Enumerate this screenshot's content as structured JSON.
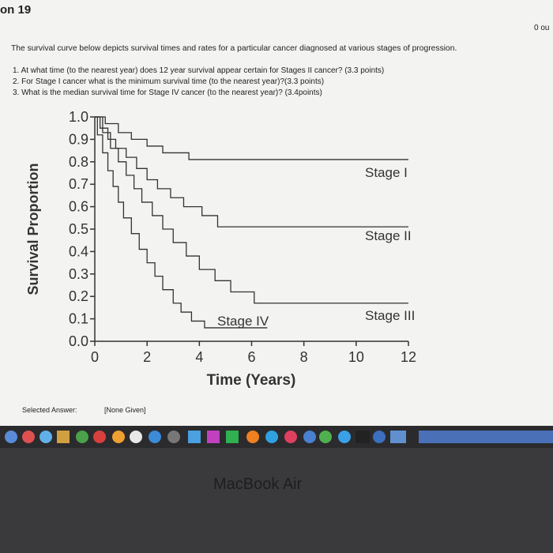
{
  "header": {
    "title": "on 19",
    "points": "0 ou"
  },
  "question": {
    "intro": "The survival curve below depicts survival times and rates for a particular cancer diagnosed at various stages of progression.",
    "items": [
      "1. At what time (to the nearest year) does 12 year survival appear certain for Stages II cancer? (3.3 points)",
      "2. For Stage I cancer what is the minimum survival time (to the nearest year)?(3.3 points)",
      "3. What is the median survival time for Stage IV cancer (to the nearest year)? (3.4points)"
    ]
  },
  "chart_data": {
    "type": "line",
    "step": true,
    "x_label": "Time (Years)",
    "y_label": "Survival Proportion",
    "xlim": [
      0,
      12
    ],
    "xticks": [
      0,
      2,
      4,
      6,
      8,
      10,
      12
    ],
    "ylim": [
      0,
      1
    ],
    "yticks": [
      {
        "value": 0,
        "label": "0.0"
      },
      0.1,
      0.2,
      0.3,
      0.4,
      0.5,
      0.6,
      0.7,
      0.8,
      0.9,
      {
        "value": 1,
        "label": "1.0"
      }
    ],
    "series": [
      {
        "name": "Stage I",
        "color": "#333333",
        "x": [
          0,
          0.4,
          0.9,
          1.4,
          2.0,
          2.6,
          3.6,
          12
        ],
        "values": [
          1.0,
          0.97,
          0.93,
          0.9,
          0.87,
          0.84,
          0.81,
          0.81
        ]
      },
      {
        "name": "Stage II",
        "color": "#333333",
        "x": [
          0,
          0.2,
          0.5,
          0.8,
          1.2,
          1.6,
          2.0,
          2.4,
          2.9,
          3.4,
          4.1,
          4.7,
          12
        ],
        "values": [
          1.0,
          0.95,
          0.9,
          0.86,
          0.82,
          0.77,
          0.72,
          0.68,
          0.64,
          0.6,
          0.56,
          0.51,
          0.51
        ]
      },
      {
        "name": "Stage III",
        "color": "#333333",
        "x": [
          0,
          0.3,
          0.6,
          0.9,
          1.2,
          1.5,
          1.8,
          2.2,
          2.6,
          3.0,
          3.5,
          4.0,
          4.6,
          5.2,
          6.1,
          12
        ],
        "values": [
          1.0,
          0.93,
          0.86,
          0.8,
          0.74,
          0.68,
          0.62,
          0.56,
          0.5,
          0.44,
          0.38,
          0.32,
          0.27,
          0.22,
          0.17,
          0.17
        ]
      },
      {
        "name": "Stage IV",
        "color": "#333333",
        "x": [
          0,
          0.1,
          0.3,
          0.5,
          0.7,
          0.9,
          1.1,
          1.4,
          1.7,
          2.0,
          2.3,
          2.6,
          3.0,
          3.3,
          3.7,
          4.2,
          6.6
        ],
        "values": [
          1.0,
          0.92,
          0.84,
          0.76,
          0.69,
          0.62,
          0.55,
          0.48,
          0.41,
          0.35,
          0.29,
          0.23,
          0.17,
          0.13,
          0.09,
          0.06,
          0.06
        ]
      }
    ]
  },
  "answer": {
    "label": "Selected Answer:",
    "value": "[None Given]"
  },
  "laptop": {
    "brand": "MacBook Air"
  }
}
